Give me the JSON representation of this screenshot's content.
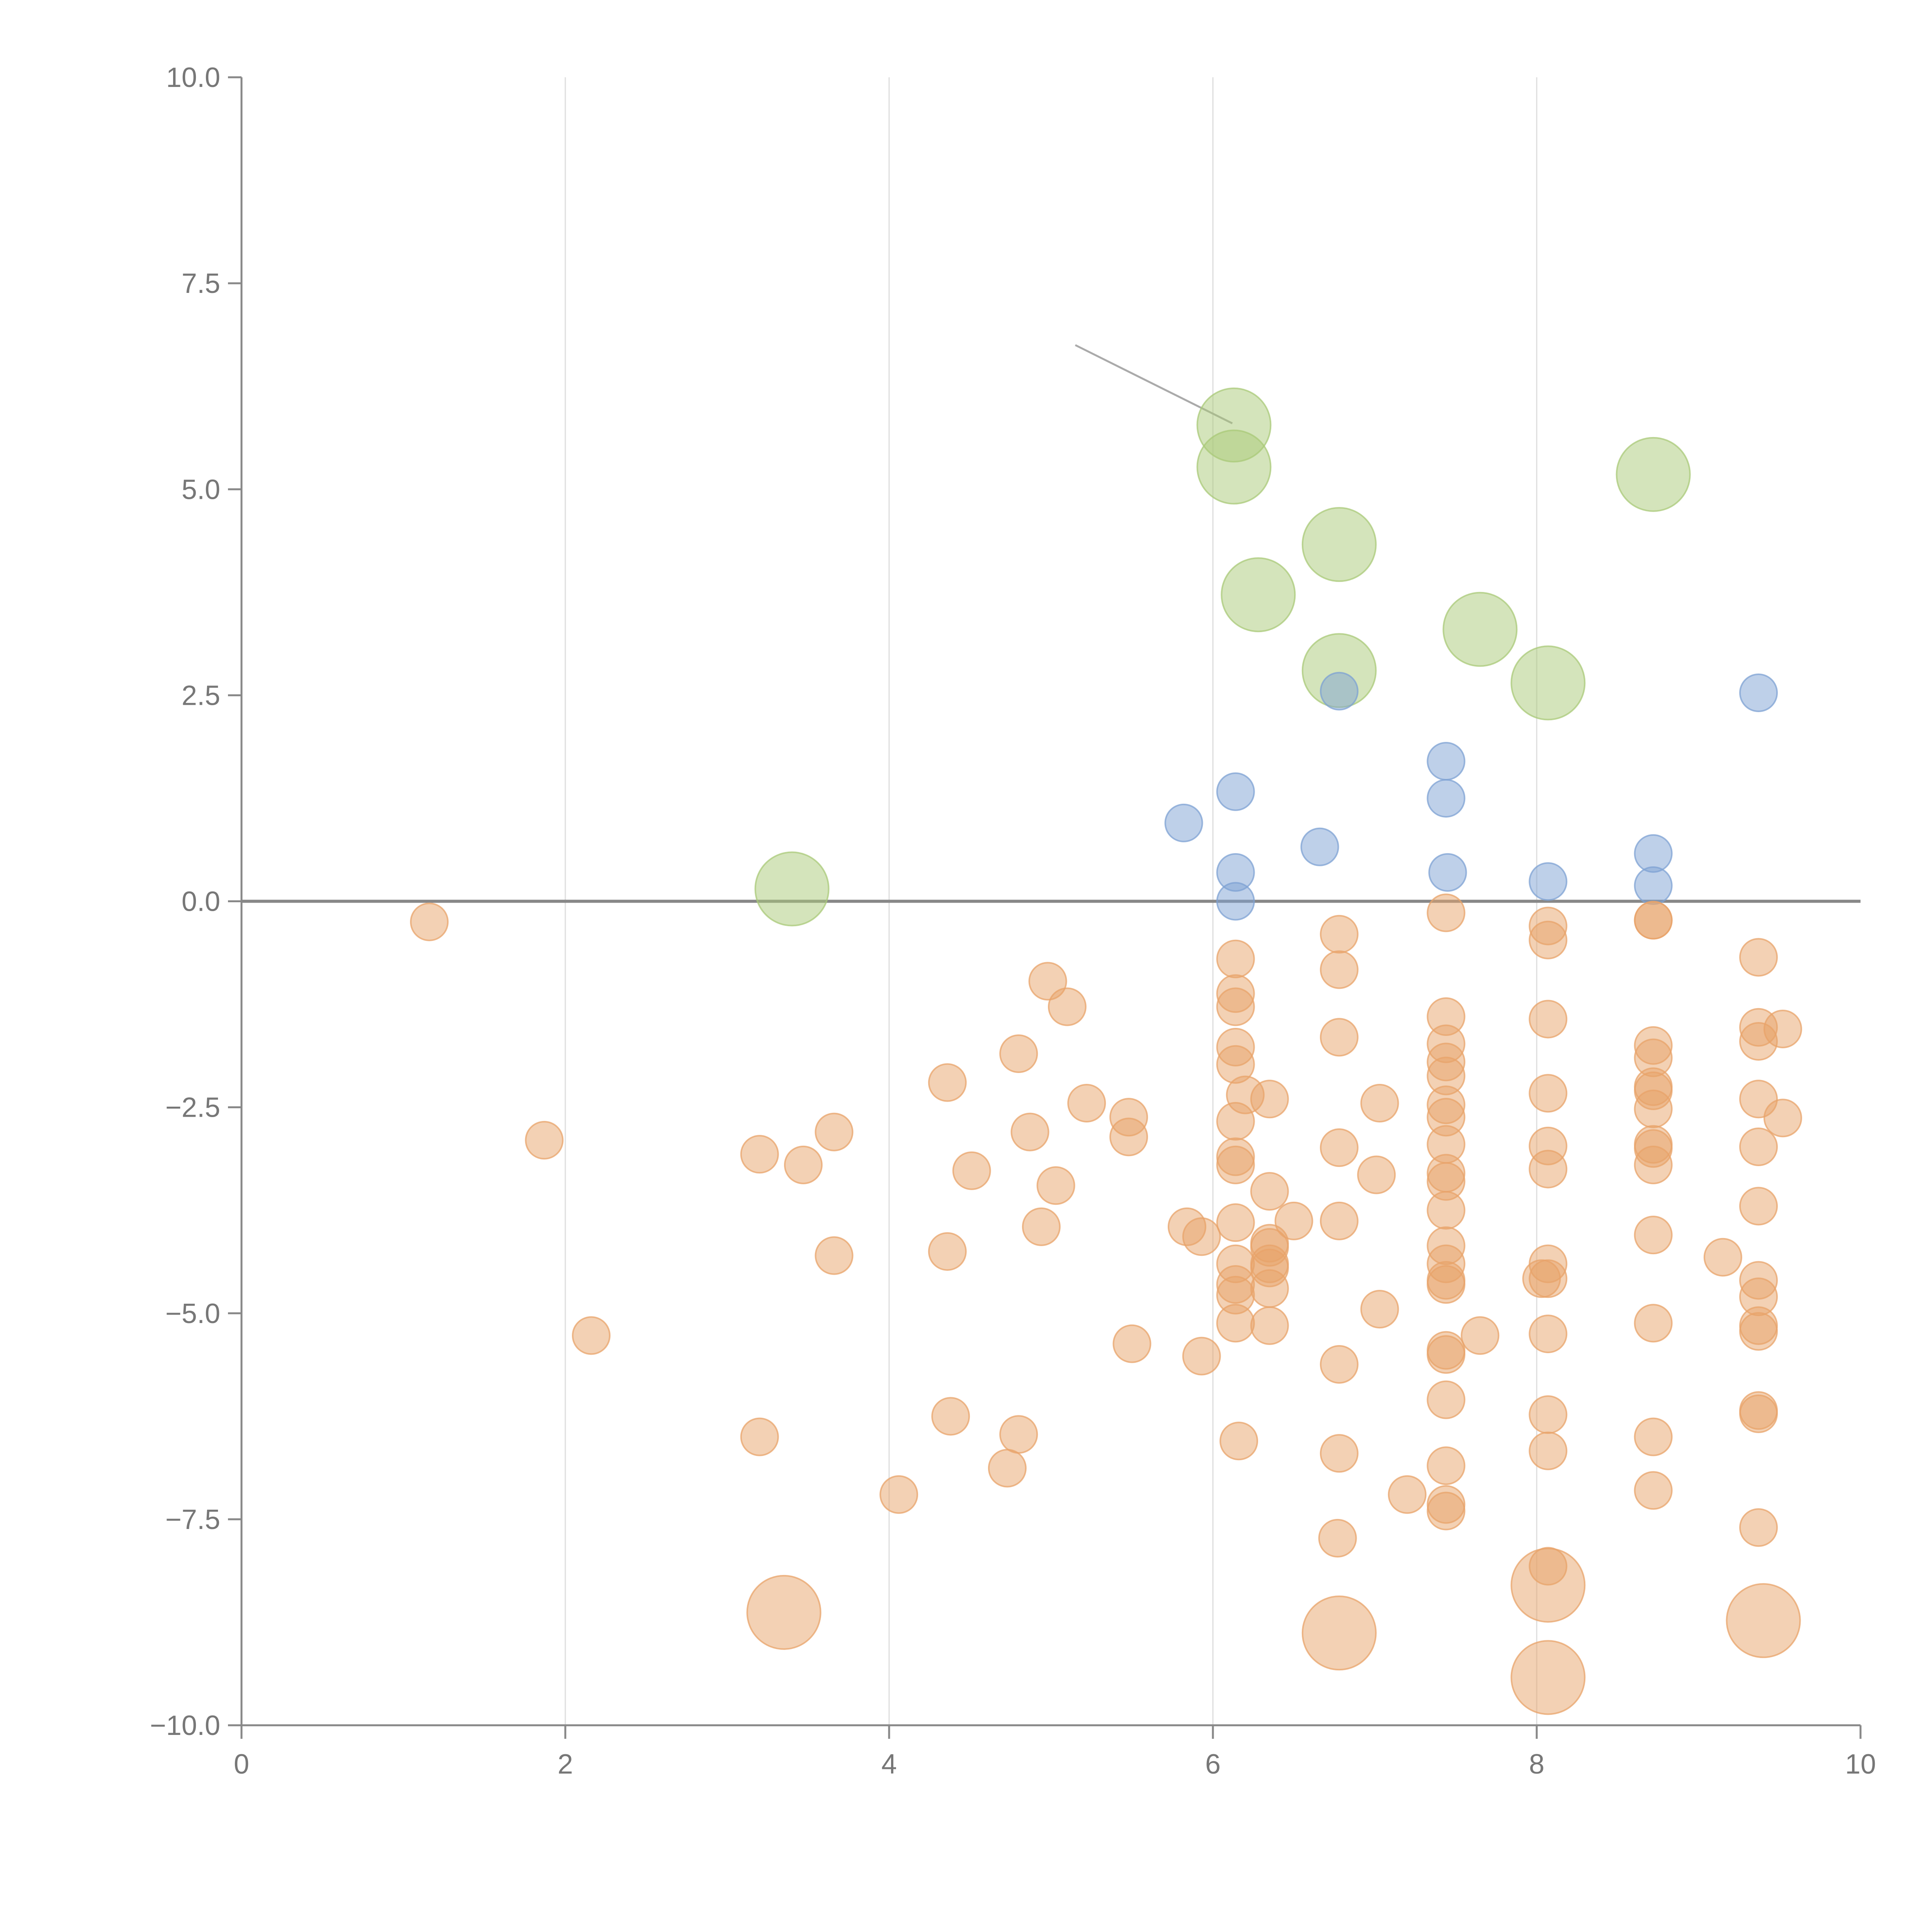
{
  "colors": {
    "negative": "#e8a369",
    "low_positive": "#7ea1d3",
    "high_positive": "#a9c978",
    "grid": "#dddddd",
    "axis": "#888888",
    "tick_text": "#777777"
  },
  "chart_data": {
    "type": "scatter",
    "title": "",
    "xlabel": "",
    "ylabel": "",
    "xlim": [
      0,
      10
    ],
    "ylim": [
      -10,
      10
    ],
    "x_ticks": [
      "0",
      "2",
      "4",
      "6",
      "8",
      "10"
    ],
    "y_ticks": [
      "10.0",
      "7.5",
      "5.0",
      "2.5",
      "0.0",
      "−2.5",
      "−5.0",
      "−7.5",
      "−10.0"
    ],
    "x_tick_values": [
      0,
      2,
      4,
      6,
      8,
      10
    ],
    "y_tick_values": [
      10,
      7.5,
      5,
      2.5,
      0,
      -2.5,
      -5,
      -7.5,
      -10
    ],
    "vertical_grid_at": [
      2,
      4,
      6,
      8
    ],
    "reference_line_y": 0,
    "size_unit": "relative bubble size (1 = small, 2 = large)",
    "callout": {
      "from": [
        5.15,
        6.75
      ],
      "to": [
        6.12,
        5.8
      ]
    },
    "series": [
      {
        "name": "high_positive",
        "color_key": "high_positive",
        "points": [
          [
            3.4,
            0.15,
            2
          ],
          [
            6.13,
            5.78,
            2
          ],
          [
            6.13,
            5.27,
            2
          ],
          [
            6.28,
            3.72,
            2
          ],
          [
            6.78,
            4.33,
            2
          ],
          [
            6.78,
            2.8,
            2
          ],
          [
            7.65,
            3.3,
            2
          ],
          [
            8.07,
            2.65,
            2
          ],
          [
            8.72,
            5.18,
            2
          ]
        ]
      },
      {
        "name": "low_positive",
        "color_key": "low_positive",
        "points": [
          [
            5.82,
            0.95,
            1
          ],
          [
            6.14,
            1.33,
            1
          ],
          [
            6.14,
            0.35,
            1
          ],
          [
            6.14,
            0.0,
            1
          ],
          [
            6.66,
            0.66,
            1
          ],
          [
            6.78,
            2.55,
            1
          ],
          [
            7.44,
            1.7,
            1
          ],
          [
            7.44,
            1.25,
            1
          ],
          [
            7.45,
            0.35,
            1
          ],
          [
            8.07,
            0.24,
            1
          ],
          [
            8.72,
            0.58,
            1
          ],
          [
            8.72,
            0.19,
            1
          ],
          [
            9.37,
            2.53,
            1
          ]
        ]
      },
      {
        "name": "negative",
        "color_key": "negative",
        "points": [
          [
            1.16,
            -0.25,
            1
          ],
          [
            1.87,
            -2.9,
            1
          ],
          [
            2.16,
            -5.27,
            1
          ],
          [
            3.2,
            -3.07,
            1
          ],
          [
            3.2,
            -6.5,
            1
          ],
          [
            3.47,
            -3.2,
            1
          ],
          [
            3.66,
            -2.8,
            1
          ],
          [
            3.66,
            -4.3,
            1
          ],
          [
            3.35,
            -8.63,
            2
          ],
          [
            4.06,
            -7.2,
            1
          ],
          [
            4.36,
            -2.2,
            1
          ],
          [
            4.36,
            -4.25,
            1
          ],
          [
            4.38,
            -6.25,
            1
          ],
          [
            4.51,
            -3.27,
            1
          ],
          [
            4.73,
            -6.88,
            1
          ],
          [
            4.8,
            -1.85,
            1
          ],
          [
            4.8,
            -6.47,
            1
          ],
          [
            4.87,
            -2.8,
            1
          ],
          [
            4.94,
            -3.95,
            1
          ],
          [
            4.98,
            -0.97,
            1
          ],
          [
            5.03,
            -3.45,
            1
          ],
          [
            5.1,
            -1.28,
            1
          ],
          [
            5.22,
            -2.45,
            1
          ],
          [
            5.48,
            -2.62,
            1
          ],
          [
            5.48,
            -2.86,
            1
          ],
          [
            5.5,
            -5.37,
            1
          ],
          [
            5.84,
            -3.95,
            1
          ],
          [
            5.93,
            -4.07,
            1
          ],
          [
            5.93,
            -5.52,
            1
          ],
          [
            6.14,
            -0.7,
            1
          ],
          [
            6.14,
            -1.12,
            1
          ],
          [
            6.14,
            -1.28,
            1
          ],
          [
            6.14,
            -1.77,
            1
          ],
          [
            6.14,
            -1.98,
            1
          ],
          [
            6.14,
            -2.67,
            1
          ],
          [
            6.14,
            -3.1,
            1
          ],
          [
            6.14,
            -3.2,
            1
          ],
          [
            6.14,
            -3.9,
            1
          ],
          [
            6.14,
            -4.4,
            1
          ],
          [
            6.14,
            -4.65,
            1
          ],
          [
            6.14,
            -4.78,
            1
          ],
          [
            6.14,
            -5.12,
            1
          ],
          [
            6.16,
            -6.55,
            1
          ],
          [
            6.2,
            -2.35,
            1
          ],
          [
            6.35,
            -2.4,
            1
          ],
          [
            6.35,
            -3.52,
            1
          ],
          [
            6.35,
            -4.15,
            1
          ],
          [
            6.35,
            -4.2,
            1
          ],
          [
            6.35,
            -4.4,
            1
          ],
          [
            6.35,
            -4.45,
            1
          ],
          [
            6.35,
            -4.7,
            1
          ],
          [
            6.35,
            -5.15,
            1
          ],
          [
            6.5,
            -3.88,
            1
          ],
          [
            6.78,
            -0.4,
            1
          ],
          [
            6.78,
            -0.83,
            1
          ],
          [
            6.78,
            -1.65,
            1
          ],
          [
            6.78,
            -2.99,
            1
          ],
          [
            6.78,
            -3.88,
            1
          ],
          [
            6.78,
            -5.62,
            1
          ],
          [
            6.78,
            -6.7,
            1
          ],
          [
            6.77,
            -7.73,
            1
          ],
          [
            6.78,
            -8.88,
            2
          ],
          [
            7.03,
            -2.45,
            1
          ],
          [
            7.01,
            -3.32,
            1
          ],
          [
            7.03,
            -4.95,
            1
          ],
          [
            7.2,
            -7.2,
            1
          ],
          [
            7.44,
            -0.14,
            1
          ],
          [
            7.44,
            -1.4,
            1
          ],
          [
            7.44,
            -1.73,
            1
          ],
          [
            7.44,
            -1.95,
            1
          ],
          [
            7.44,
            -2.12,
            1
          ],
          [
            7.44,
            -2.47,
            1
          ],
          [
            7.44,
            -2.62,
            1
          ],
          [
            7.44,
            -2.95,
            1
          ],
          [
            7.44,
            -3.3,
            1
          ],
          [
            7.44,
            -3.4,
            1
          ],
          [
            7.44,
            -3.75,
            1
          ],
          [
            7.44,
            -4.18,
            1
          ],
          [
            7.44,
            -4.4,
            1
          ],
          [
            7.44,
            -4.6,
            1
          ],
          [
            7.44,
            -4.65,
            1
          ],
          [
            7.44,
            -5.45,
            1
          ],
          [
            7.44,
            -5.5,
            1
          ],
          [
            7.44,
            -6.05,
            1
          ],
          [
            7.44,
            -6.85,
            1
          ],
          [
            7.44,
            -7.32,
            1
          ],
          [
            7.44,
            -7.4,
            1
          ],
          [
            7.65,
            -5.27,
            1
          ],
          [
            8.07,
            -0.3,
            1
          ],
          [
            8.07,
            -0.47,
            1
          ],
          [
            8.07,
            -1.43,
            1
          ],
          [
            8.07,
            -2.33,
            1
          ],
          [
            8.07,
            -2.97,
            1
          ],
          [
            8.07,
            -3.25,
            1
          ],
          [
            8.07,
            -4.4,
            1
          ],
          [
            8.07,
            -4.58,
            1
          ],
          [
            8.03,
            -4.58,
            1
          ],
          [
            8.07,
            -5.25,
            1
          ],
          [
            8.07,
            -6.23,
            1
          ],
          [
            8.07,
            -6.67,
            1
          ],
          [
            8.07,
            -8.07,
            1
          ],
          [
            8.07,
            -8.3,
            2
          ],
          [
            8.07,
            -9.42,
            2
          ],
          [
            8.72,
            -0.23,
            1
          ],
          [
            8.72,
            -0.23,
            1
          ],
          [
            8.72,
            -1.75,
            1
          ],
          [
            8.72,
            -1.9,
            1
          ],
          [
            8.72,
            -2.25,
            1
          ],
          [
            8.72,
            -2.3,
            1
          ],
          [
            8.72,
            -2.52,
            1
          ],
          [
            8.72,
            -2.95,
            1
          ],
          [
            8.72,
            -3.0,
            1
          ],
          [
            8.72,
            -3.2,
            1
          ],
          [
            8.72,
            -4.05,
            1
          ],
          [
            8.72,
            -5.12,
            1
          ],
          [
            8.72,
            -6.5,
            1
          ],
          [
            8.72,
            -7.15,
            1
          ],
          [
            9.15,
            -4.32,
            1
          ],
          [
            9.37,
            -0.68,
            1
          ],
          [
            9.37,
            -1.53,
            1
          ],
          [
            9.37,
            -1.7,
            1
          ],
          [
            9.37,
            -2.4,
            1
          ],
          [
            9.37,
            -2.98,
            1
          ],
          [
            9.37,
            -3.7,
            1
          ],
          [
            9.37,
            -4.6,
            1
          ],
          [
            9.37,
            -4.8,
            1
          ],
          [
            9.37,
            -5.15,
            1
          ],
          [
            9.37,
            -5.22,
            1
          ],
          [
            9.37,
            -6.18,
            1
          ],
          [
            9.37,
            -6.22,
            1
          ],
          [
            9.37,
            -7.6,
            1
          ],
          [
            9.4,
            -8.73,
            2
          ],
          [
            9.52,
            -1.55,
            1
          ],
          [
            9.52,
            -2.63,
            1
          ]
        ]
      }
    ]
  }
}
